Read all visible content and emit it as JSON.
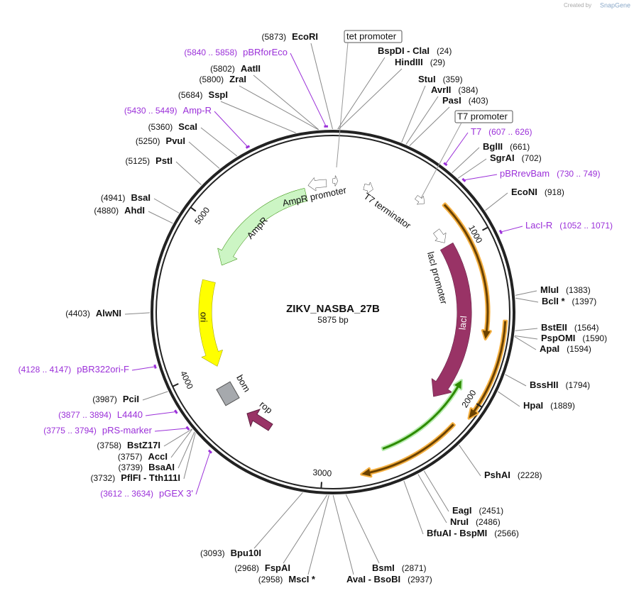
{
  "header": {
    "credit": "Created by",
    "brand": "SnapGene"
  },
  "plasmid": {
    "name": "ZIKV_NASBA_27B",
    "size": "5875 bp",
    "ticks": [
      "1000",
      "2000",
      "3000",
      "4000",
      "5000"
    ]
  },
  "boxed_features": [
    {
      "label": "tet promoter"
    },
    {
      "label": "T7 promoter"
    }
  ],
  "features": [
    {
      "label": "AmpR"
    },
    {
      "label": "AmpR promoter"
    },
    {
      "label": "T7 terminator"
    },
    {
      "label": "lacI promoter"
    },
    {
      "label": "lacI"
    },
    {
      "label": "ori"
    },
    {
      "label": "bom"
    },
    {
      "label": "rop"
    }
  ],
  "sites": [
    {
      "name": "EcoRI",
      "position": "(5873)"
    },
    {
      "name": "AatII",
      "position": "(5802)"
    },
    {
      "name": "ZraI",
      "position": "(5800)"
    },
    {
      "name": "SspI",
      "position": "(5684)"
    },
    {
      "name": "ScaI",
      "position": "(5360)"
    },
    {
      "name": "PvuI",
      "position": "(5250)"
    },
    {
      "name": "PstI",
      "position": "(5125)"
    },
    {
      "name": "BsaI",
      "position": "(4941)"
    },
    {
      "name": "AhdI",
      "position": "(4880)"
    },
    {
      "name": "AlwNI",
      "position": "(4403)"
    },
    {
      "name": "PciI",
      "position": "(3987)"
    },
    {
      "name": "BstZ17I",
      "position": "(3758)"
    },
    {
      "name": "AccI",
      "position": "(3757)"
    },
    {
      "name": "BsaAI",
      "position": "(3739)"
    },
    {
      "name": "PflFI - Tth111I",
      "position": "(3732)"
    },
    {
      "name": "Bpu10I",
      "position": "(3093)"
    },
    {
      "name": "FspAI",
      "position": "(2968)"
    },
    {
      "name": "MscI *",
      "position": "(2958)"
    },
    {
      "name": "BspDI - ClaI",
      "position": "(24)"
    },
    {
      "name": "HindIII",
      "position": "(29)"
    },
    {
      "name": "StuI",
      "position": "(359)"
    },
    {
      "name": "AvrII",
      "position": "(384)"
    },
    {
      "name": "PasI",
      "position": "(403)"
    },
    {
      "name": "BglII",
      "position": "(661)"
    },
    {
      "name": "SgrAI",
      "position": "(702)"
    },
    {
      "name": "EcoNI",
      "position": "(918)"
    },
    {
      "name": "MluI",
      "position": "(1383)"
    },
    {
      "name": "BclI *",
      "position": "(1397)"
    },
    {
      "name": "BstEII",
      "position": "(1564)"
    },
    {
      "name": "PspOMI",
      "position": "(1590)"
    },
    {
      "name": "ApaI",
      "position": "(1594)"
    },
    {
      "name": "BssHII",
      "position": "(1794)"
    },
    {
      "name": "HpaI",
      "position": "(1889)"
    },
    {
      "name": "PshAI",
      "position": "(2228)"
    },
    {
      "name": "EagI",
      "position": "(2451)"
    },
    {
      "name": "NruI",
      "position": "(2486)"
    },
    {
      "name": "BfuAI - BspMI",
      "position": "(2566)"
    },
    {
      "name": "BsmI",
      "position": "(2871)"
    },
    {
      "name": "AvaI - BsoBI",
      "position": "(2937)"
    }
  ],
  "primers": [
    {
      "name": "pBRforEco",
      "range": "(5840 .. 5858)"
    },
    {
      "name": "Amp-R",
      "range": "(5430 .. 5449)"
    },
    {
      "name": "pBR322ori-F",
      "range": "(4128 .. 4147)"
    },
    {
      "name": "L4440",
      "range": "(3877 .. 3894)"
    },
    {
      "name": "pRS-marker",
      "range": "(3775 .. 3794)"
    },
    {
      "name": "pGEX 3'",
      "range": "(3612 .. 3634)"
    },
    {
      "name": "T7",
      "range": "(607 .. 626)"
    },
    {
      "name": "pBRrevBam",
      "range": "(730 .. 749)"
    },
    {
      "name": "LacI-R",
      "range": "(1052 .. 1071)"
    }
  ]
}
